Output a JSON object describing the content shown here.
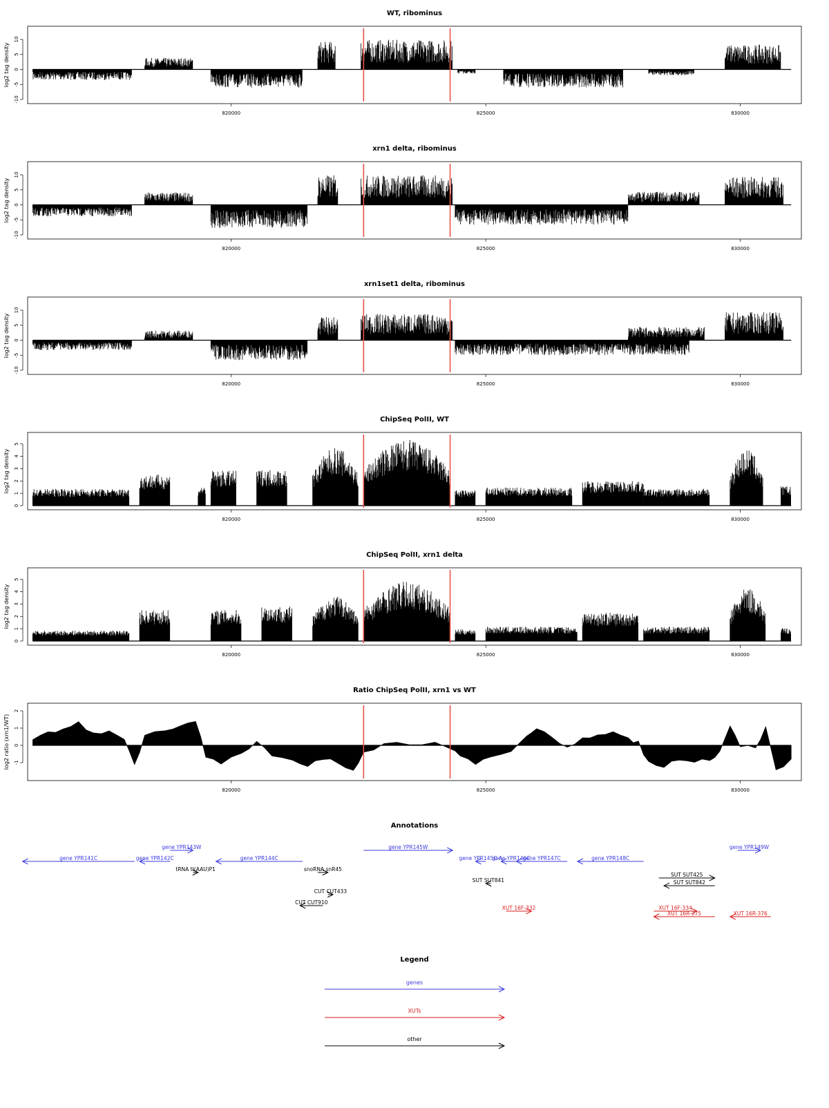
{
  "genome_axis": {
    "xlim": [
      816000,
      831200
    ],
    "ticks": [
      820000,
      825000,
      830000
    ],
    "highlight_region": [
      822600,
      824300
    ],
    "highlight_color": "#e8524a"
  },
  "panels": [
    {
      "title": "WT, ribominus",
      "ylabel": "log2 tag density",
      "ylim": [
        -10,
        13
      ],
      "yticks": [
        -10,
        -5,
        0,
        5,
        10
      ]
    },
    {
      "title": "xrn1 delta, ribominus",
      "ylabel": "log2 tag density",
      "ylim": [
        -10,
        13
      ],
      "yticks": [
        -10,
        -5,
        0,
        5,
        10
      ]
    },
    {
      "title": "xrn1set1 delta, ribominus",
      "ylabel": "log2 tag density",
      "ylim": [
        -10,
        13
      ],
      "yticks": [
        -10,
        -5,
        0,
        5,
        10
      ]
    },
    {
      "title": "ChipSeq PolII, WT",
      "ylabel": "log2 tag density",
      "ylim": [
        0,
        5.6
      ],
      "yticks": [
        0,
        1,
        2,
        3,
        4,
        5
      ]
    },
    {
      "title": "ChipSeq PolII, xrn1 delta",
      "ylabel": "log2 tag density",
      "ylim": [
        0,
        5.6
      ],
      "yticks": [
        0,
        1,
        2,
        3,
        4,
        5
      ]
    },
    {
      "title": "Ratio ChipSeq PolII, xrn1 vs WT",
      "ylabel": "log2 ratio (xrn1/WT)",
      "ylim": [
        -1.8,
        2.2
      ],
      "yticks": [
        -1,
        0,
        1,
        2
      ]
    }
  ],
  "chart_data": [
    {
      "type": "bar",
      "title": "WT, ribominus",
      "ylabel": "log2 tag density",
      "ylim": [
        -10,
        13
      ],
      "segments": [
        {
          "start": 816100,
          "end": 818050,
          "value": -3.2
        },
        {
          "start": 818300,
          "end": 819250,
          "value": 3.5
        },
        {
          "start": 819600,
          "end": 821400,
          "value": -5.5
        },
        {
          "start": 821700,
          "end": 822050,
          "value": 8.5
        },
        {
          "start": 822550,
          "end": 824350,
          "value": 9
        },
        {
          "start": 824450,
          "end": 824800,
          "value": -1.3
        },
        {
          "start": 825350,
          "end": 827700,
          "value": -5.5
        },
        {
          "start": 828200,
          "end": 829100,
          "value": -1.8
        },
        {
          "start": 829700,
          "end": 830800,
          "value": 7.5
        }
      ]
    },
    {
      "type": "bar",
      "title": "xrn1 delta, ribominus",
      "ylabel": "log2 tag density",
      "ylim": [
        -10,
        13
      ],
      "segments": [
        {
          "start": 816100,
          "end": 818050,
          "value": -3.5
        },
        {
          "start": 818300,
          "end": 819250,
          "value": 3.8
        },
        {
          "start": 819600,
          "end": 821500,
          "value": -7
        },
        {
          "start": 821700,
          "end": 822100,
          "value": 9
        },
        {
          "start": 822550,
          "end": 824350,
          "value": 9
        },
        {
          "start": 824400,
          "end": 827800,
          "value": -6
        },
        {
          "start": 827800,
          "end": 829200,
          "value": 4
        },
        {
          "start": 829700,
          "end": 830850,
          "value": 8.5
        }
      ]
    },
    {
      "type": "bar",
      "title": "xrn1set1 delta, ribominus",
      "ylabel": "log2 tag density",
      "ylim": [
        -10,
        13
      ],
      "segments": [
        {
          "start": 816100,
          "end": 818050,
          "value": -3
        },
        {
          "start": 818300,
          "end": 819250,
          "value": 3
        },
        {
          "start": 819600,
          "end": 821500,
          "value": -6
        },
        {
          "start": 821700,
          "end": 822100,
          "value": 7
        },
        {
          "start": 822550,
          "end": 824350,
          "value": 8
        },
        {
          "start": 824400,
          "end": 829000,
          "value": -4.5
        },
        {
          "start": 827800,
          "end": 829300,
          "value": 4
        },
        {
          "start": 829700,
          "end": 830850,
          "value": 8.5
        }
      ]
    },
    {
      "type": "bar",
      "title": "ChipSeq PolII, WT",
      "ylabel": "log2 tag density",
      "ylim": [
        0,
        5.6
      ],
      "segments": [
        {
          "start": 816100,
          "end": 818000,
          "value": 1.3
        },
        {
          "start": 818200,
          "end": 818800,
          "value": 2.4
        },
        {
          "start": 819350,
          "end": 819500,
          "value": 1.5
        },
        {
          "start": 819600,
          "end": 820100,
          "value": 2.7
        },
        {
          "start": 820500,
          "end": 821100,
          "value": 2.8
        },
        {
          "start": 821600,
          "end": 822500,
          "value": 4.5
        },
        {
          "start": 822600,
          "end": 824300,
          "value": 5.1
        },
        {
          "start": 824400,
          "end": 824800,
          "value": 1.2
        },
        {
          "start": 825000,
          "end": 826700,
          "value": 1.4
        },
        {
          "start": 826900,
          "end": 828100,
          "value": 1.9
        },
        {
          "start": 828100,
          "end": 829400,
          "value": 1.3
        },
        {
          "start": 829800,
          "end": 830450,
          "value": 4.4
        },
        {
          "start": 830800,
          "end": 831000,
          "value": 1.5
        }
      ]
    },
    {
      "type": "bar",
      "title": "ChipSeq PolII, xrn1 delta",
      "ylabel": "log2 tag density",
      "ylim": [
        0,
        5.6
      ],
      "segments": [
        {
          "start": 816100,
          "end": 818000,
          "value": 0.8
        },
        {
          "start": 818200,
          "end": 818800,
          "value": 2.4
        },
        {
          "start": 819600,
          "end": 820200,
          "value": 2.4
        },
        {
          "start": 820600,
          "end": 821200,
          "value": 2.7
        },
        {
          "start": 821600,
          "end": 822500,
          "value": 3.5
        },
        {
          "start": 822600,
          "end": 824300,
          "value": 4.6
        },
        {
          "start": 824400,
          "end": 824800,
          "value": 0.9
        },
        {
          "start": 825000,
          "end": 826800,
          "value": 1.1
        },
        {
          "start": 826900,
          "end": 828000,
          "value": 2.2
        },
        {
          "start": 828100,
          "end": 829400,
          "value": 1.1
        },
        {
          "start": 829800,
          "end": 830500,
          "value": 4.1
        },
        {
          "start": 830800,
          "end": 831000,
          "value": 1
        }
      ]
    },
    {
      "type": "area",
      "title": "Ratio ChipSeq PolII, xrn1 vs WT",
      "ylabel": "log2 ratio (xrn1/WT)",
      "ylim": [
        -1.8,
        2.2
      ],
      "x": [
        816100,
        816400,
        816700,
        817000,
        817300,
        817600,
        817900,
        818100,
        818300,
        818700,
        819000,
        819300,
        819500,
        819800,
        820200,
        820500,
        820800,
        821200,
        821500,
        821800,
        822100,
        822400,
        822600,
        823000,
        823500,
        824000,
        824300,
        824500,
        824800,
        825100,
        825500,
        825800,
        826000,
        826300,
        826600,
        826900,
        827200,
        827500,
        827800,
        828000,
        828200,
        828500,
        828800,
        829100,
        829400,
        829600,
        829800,
        830000,
        830300,
        830500,
        830700,
        831000
      ],
      "y": [
        0.3,
        0.8,
        0.9,
        1.3,
        0.7,
        0.9,
        0.3,
        -1.2,
        0.6,
        0.9,
        1.1,
        1.4,
        -0.6,
        -1,
        -0.5,
        0.3,
        -0.6,
        -0.8,
        -1.3,
        -0.8,
        -1,
        -1.4,
        -0.4,
        0.1,
        0.05,
        0.1,
        -0.2,
        -0.6,
        -1.2,
        -0.6,
        -0.3,
        0.5,
        1,
        0.4,
        -0.2,
        0.5,
        0.6,
        0.8,
        0.4,
        0.2,
        -1,
        -1.3,
        -0.8,
        -1,
        -0.9,
        -0.3,
        1.2,
        -0.1,
        -0.2,
        1,
        -1.4,
        -0.8
      ]
    }
  ],
  "annotations": {
    "title": "Annotations",
    "features": [
      {
        "label": "gene YPR141C",
        "start": 818100,
        "end": 815900,
        "row": 1,
        "color": "#3a3adf"
      },
      {
        "label": "gene YPR142C",
        "start": 818800,
        "end": 818200,
        "row": 1,
        "color": "#3a3adf"
      },
      {
        "label": "gene YPR143W",
        "start": 818800,
        "end": 819250,
        "row": 0,
        "color": "#3a3adf"
      },
      {
        "label": "tRNA tI(AAU)P1",
        "start": 819250,
        "end": 819350,
        "row": 2,
        "color": "#000000"
      },
      {
        "label": "gene YPR144C",
        "start": 821400,
        "end": 819700,
        "row": 1,
        "color": "#3a3adf"
      },
      {
        "label": "snoRNA snR45",
        "start": 821700,
        "end": 821900,
        "row": 2,
        "color": "#000000"
      },
      {
        "label": "gene YPR145W",
        "start": 822600,
        "end": 824350,
        "row": 0,
        "color": "#3a3adf"
      },
      {
        "label": "gene YPR145C-A",
        "start": 825000,
        "end": 824800,
        "row": 1,
        "color": "#3a3adf"
      },
      {
        "label": "gene YPR146C",
        "start": 825700,
        "end": 825300,
        "row": 1,
        "color": "#3a3adf"
      },
      {
        "label": "gene YPR147C",
        "start": 826600,
        "end": 825600,
        "row": 1,
        "color": "#3a3adf"
      },
      {
        "label": "gene YPR148C",
        "start": 828100,
        "end": 826800,
        "row": 1,
        "color": "#3a3adf"
      },
      {
        "label": "gene YPR149W",
        "start": 829950,
        "end": 830400,
        "row": 0,
        "color": "#3a3adf"
      },
      {
        "label": "CUT CUT433",
        "start": 821900,
        "end": 822000,
        "row": 4,
        "color": "#000000"
      },
      {
        "label": "CUT CUT910",
        "start": 821800,
        "end": 821350,
        "row": 5,
        "color": "#000000"
      },
      {
        "label": "SUT SUT841",
        "start": 825100,
        "end": 825000,
        "row": 3,
        "color": "#000000"
      },
      {
        "label": "SUT SUT425",
        "start": 828400,
        "end": 829500,
        "row": 2.5,
        "color": "#000000"
      },
      {
        "label": "SUT SUT842",
        "start": 829500,
        "end": 828500,
        "row": 3.2,
        "color": "#000000"
      },
      {
        "label": "XUT 16F-332",
        "start": 825400,
        "end": 825900,
        "row": 5.5,
        "color": "#d81b1b"
      },
      {
        "label": "XUT 16F-334",
        "start": 828300,
        "end": 829150,
        "row": 5.5,
        "color": "#d81b1b"
      },
      {
        "label": "XUT 16R-375",
        "start": 829500,
        "end": 828300,
        "row": 6,
        "color": "#d81b1b"
      },
      {
        "label": "XUT 16R-376",
        "start": 830600,
        "end": 829800,
        "row": 6,
        "color": "#d81b1b"
      }
    ]
  },
  "legend": {
    "title": "Legend",
    "entries": [
      {
        "label": "genes",
        "color": "#3a3adf"
      },
      {
        "label": "XUTs",
        "color": "#d81b1b"
      },
      {
        "label": "other",
        "color": "#000000"
      }
    ]
  }
}
